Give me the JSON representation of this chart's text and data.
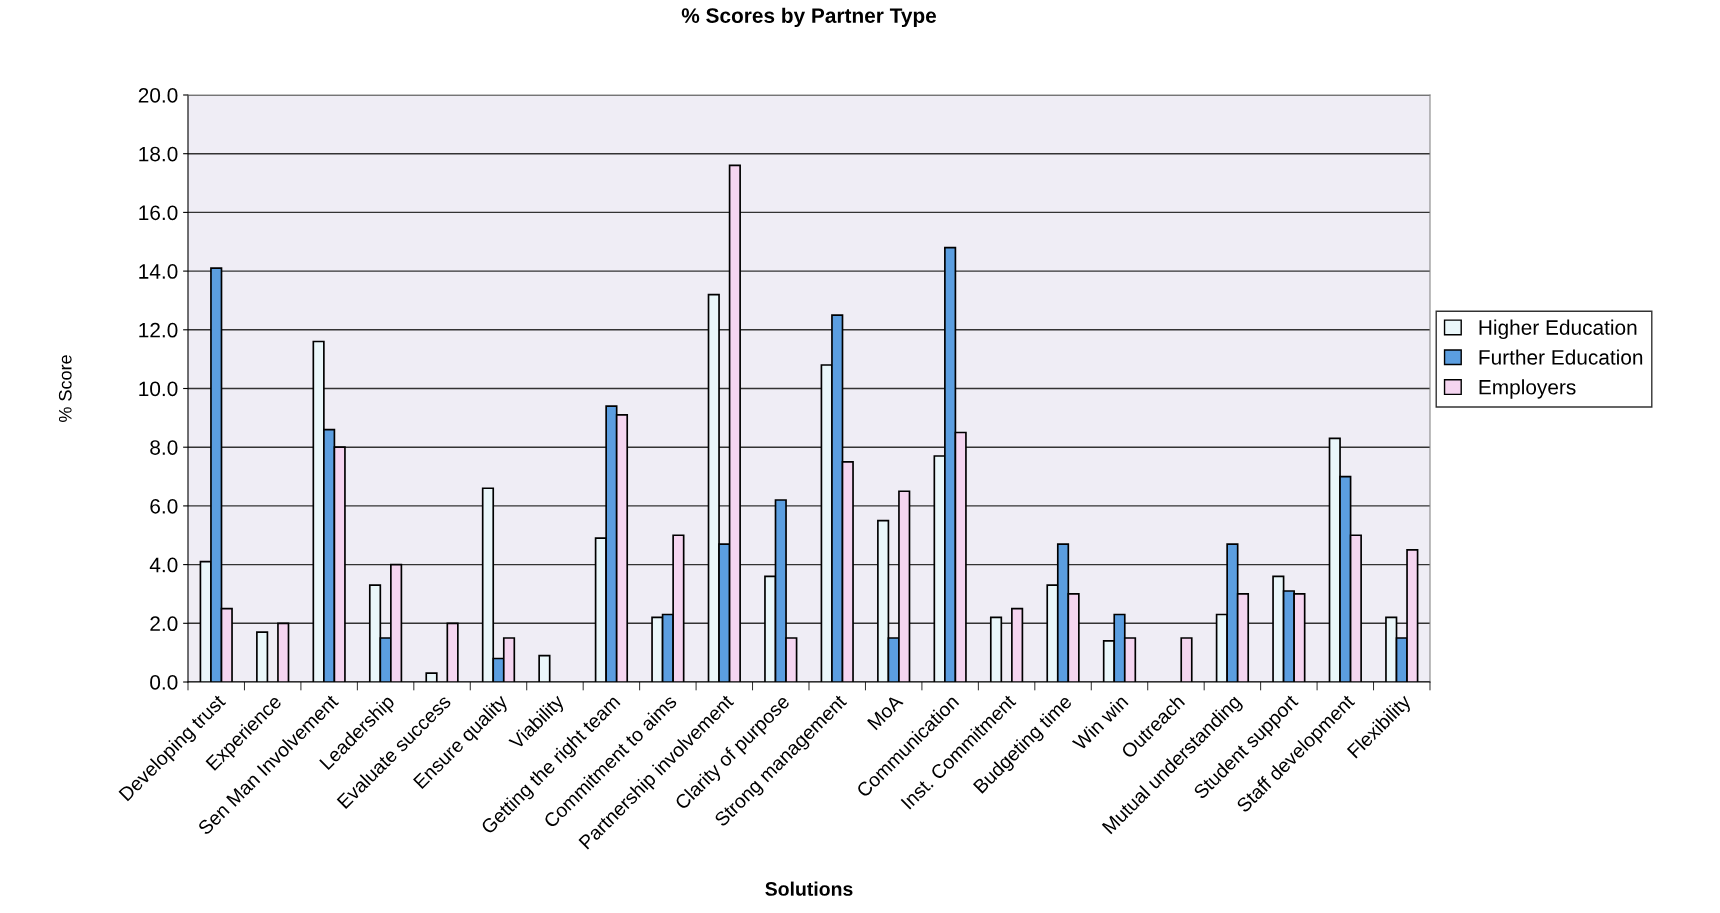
{
  "chart_data": {
    "type": "bar",
    "title": "% Scores by Partner Type",
    "xlabel": "Solutions",
    "ylabel": "% Score",
    "categories": [
      "Developing trust",
      "Experience",
      "Sen Man Involvement",
      "Leadership",
      "Evaluate success",
      "Ensure quality",
      "Viability",
      "Getting the right team",
      "Commitment to aims",
      "Partnership involvement",
      "Clarity of purpose",
      "Strong management",
      "MoA",
      "Communication",
      "Inst. Commitment",
      "Budgeting time",
      "Win win",
      "Outreach",
      "Mutual understanding",
      "Student support",
      "Staff development",
      "Flexibility"
    ],
    "series": [
      {
        "name": "Higher Education",
        "color": "#eaf7fa",
        "values": [
          4.1,
          1.7,
          11.6,
          3.3,
          0.3,
          6.6,
          0.9,
          4.9,
          2.2,
          13.2,
          3.6,
          10.8,
          5.5,
          7.7,
          2.2,
          3.3,
          1.4,
          null,
          2.3,
          3.6,
          8.3,
          2.2
        ]
      },
      {
        "name": "Further Education",
        "color": "#5b9ee0",
        "values": [
          14.1,
          null,
          8.6,
          1.5,
          null,
          0.8,
          null,
          9.4,
          2.3,
          4.7,
          6.2,
          12.5,
          1.5,
          14.8,
          null,
          4.7,
          2.3,
          null,
          4.7,
          3.1,
          7.0,
          1.5
        ]
      },
      {
        "name": "Employers",
        "color": "#f5d5f0",
        "values": [
          2.5,
          2.0,
          8.0,
          4.0,
          2.0,
          1.5,
          null,
          9.1,
          5.0,
          17.6,
          1.5,
          7.5,
          6.5,
          8.5,
          2.5,
          3.0,
          1.5,
          1.5,
          3.0,
          3.0,
          5.0,
          4.5
        ]
      }
    ],
    "ylim": [
      0,
      20
    ],
    "yticks": [
      {
        "value": 0,
        "label": "0.0"
      },
      {
        "value": 2,
        "label": "2.0"
      },
      {
        "value": 4,
        "label": "4.0"
      },
      {
        "value": 6,
        "label": "6.0"
      },
      {
        "value": 8,
        "label": "8.0"
      },
      {
        "value": 10,
        "label": "10.0"
      },
      {
        "value": 12,
        "label": "12.0"
      },
      {
        "value": 14,
        "label": "14.0"
      },
      {
        "value": 16,
        "label": "16.0"
      },
      {
        "value": 18,
        "label": "18.0"
      },
      {
        "value": 20,
        "label": "20.0"
      }
    ],
    "grid": "y",
    "legend": "right"
  }
}
